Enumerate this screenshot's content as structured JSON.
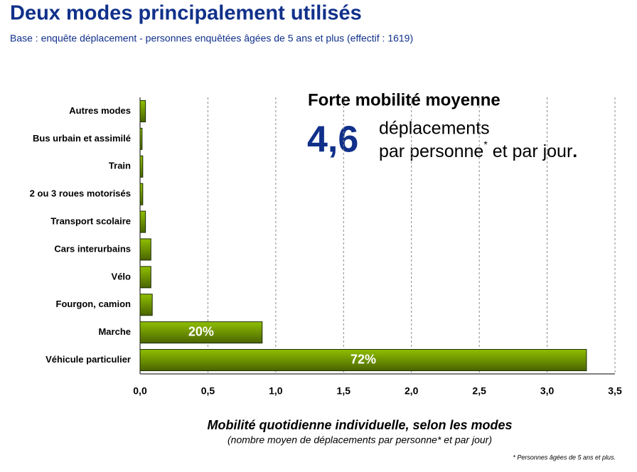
{
  "chart_data": {
    "type": "hbar",
    "title": "Deux modes principalement utilisés",
    "subtitle": "Base : enquête déplacement - personnes enquêtées âgées de 5 ans et plus (effectif : 1619)",
    "categories": [
      "Autres modes",
      "Bus urbain et assimilé",
      "Train",
      "2 ou 3 roues motorisés",
      "Transport scolaire",
      "Cars interurbains",
      "Vélo",
      "Fourgon, camion",
      "Marche",
      "Véhicule particulier"
    ],
    "values": [
      0.04,
      0.015,
      0.02,
      0.02,
      0.04,
      0.08,
      0.08,
      0.09,
      0.9,
      3.29
    ],
    "bar_labels": [
      {
        "index": 8,
        "text": "20%"
      },
      {
        "index": 9,
        "text": "72%"
      }
    ],
    "color": "#8fbf00",
    "xlim": [
      0,
      3.5
    ],
    "xticks": [
      {
        "value": 0,
        "label": "0,0"
      },
      {
        "value": 0.5,
        "label": "0,5"
      },
      {
        "value": 1,
        "label": "1,0"
      },
      {
        "value": 1.5,
        "label": "1,5"
      },
      {
        "value": 2,
        "label": "2,0"
      },
      {
        "value": 2.5,
        "label": "2,5"
      },
      {
        "value": 3,
        "label": "3,0"
      },
      {
        "value": 3.5,
        "label": "3,5"
      }
    ],
    "grid": true,
    "xlabel": "Mobilité quotidienne individuelle, selon les modes",
    "xlabel_note": "(nombre moyen de déplacements par personne* et par jour)",
    "callout": {
      "heading": "Forte mobilité moyenne",
      "value": "4,6",
      "line1": "déplacements",
      "line2a": "par personne",
      "line2sup": "*",
      "line2b": " et par jour",
      "line2end": "."
    },
    "footnote": "* Personnes âgées de 5 ans et plus."
  }
}
